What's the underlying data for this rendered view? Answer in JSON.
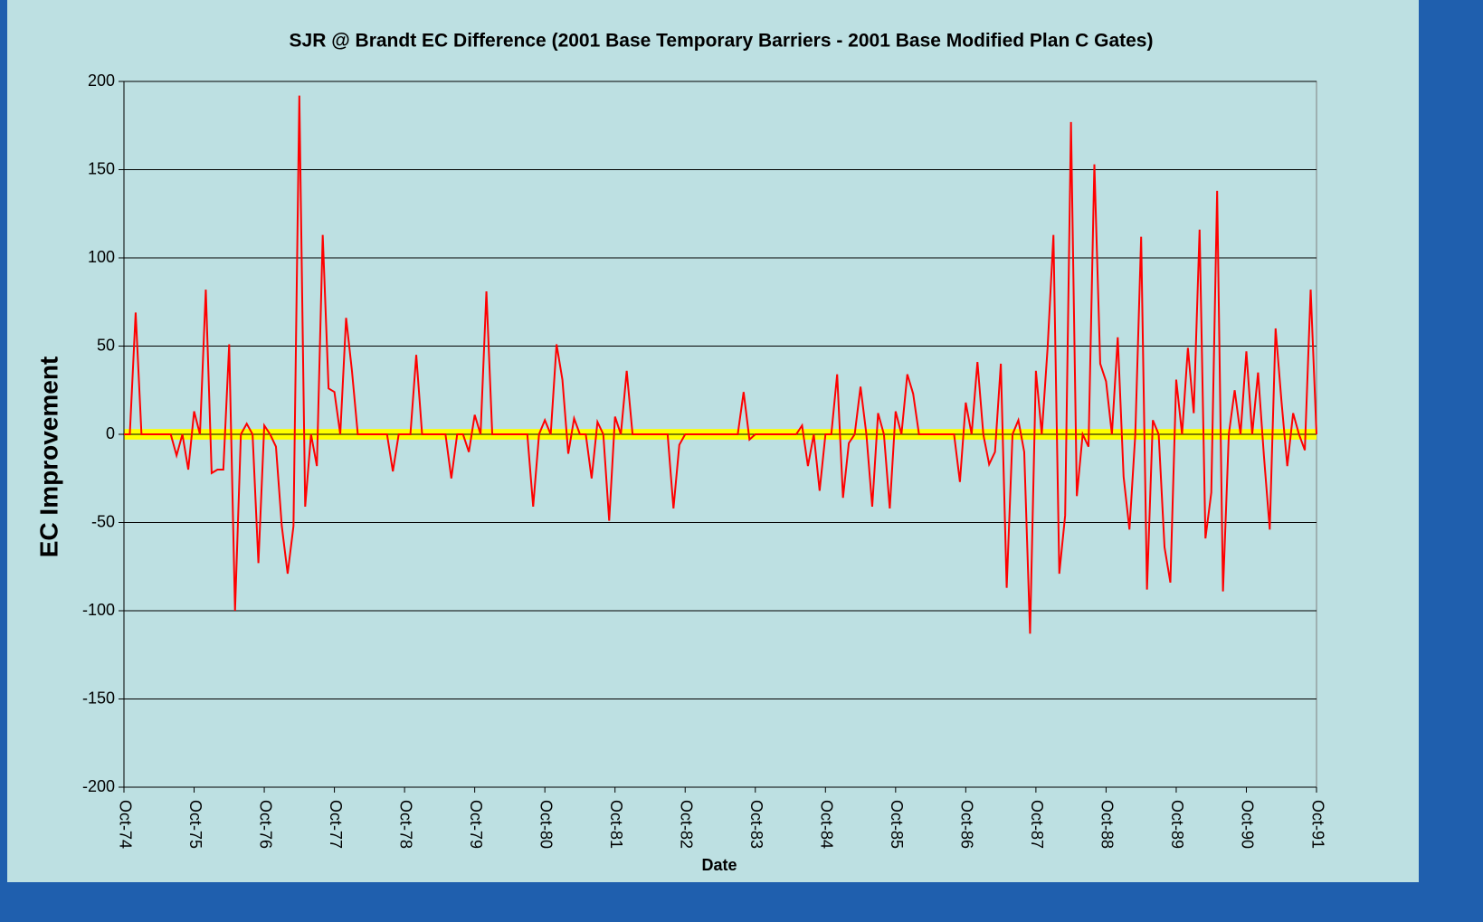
{
  "chart_data": {
    "type": "line",
    "title": "SJR @ Brandt EC Difference (2001 Base Temporary Barriers - 2001 Base Modified Plan C Gates)",
    "x_label": "Date",
    "y_label": "EC Improvement",
    "x": [
      "Oct-74",
      "Nov-74",
      "Dec-74",
      "Jan-75",
      "Feb-75",
      "Mar-75",
      "Apr-75",
      "May-75",
      "Jun-75",
      "Jul-75",
      "Aug-75",
      "Sep-75",
      "Oct-75",
      "Nov-75",
      "Dec-75",
      "Jan-76",
      "Feb-76",
      "Mar-76",
      "Apr-76",
      "May-76",
      "Jun-76",
      "Jul-76",
      "Aug-76",
      "Sep-76",
      "Oct-76",
      "Nov-76",
      "Dec-76",
      "Jan-77",
      "Feb-77",
      "Mar-77",
      "Apr-77",
      "May-77",
      "Jun-77",
      "Jul-77",
      "Aug-77",
      "Sep-77",
      "Oct-77",
      "Nov-77",
      "Dec-77",
      "Jan-78",
      "Feb-78",
      "Mar-78",
      "Apr-78",
      "May-78",
      "Jun-78",
      "Jul-78",
      "Aug-78",
      "Sep-78",
      "Oct-78",
      "Nov-78",
      "Dec-78",
      "Jan-79",
      "Feb-79",
      "Mar-79",
      "Apr-79",
      "May-79",
      "Jun-79",
      "Jul-79",
      "Aug-79",
      "Sep-79",
      "Oct-79",
      "Nov-79",
      "Dec-79",
      "Jan-80",
      "Feb-80",
      "Mar-80",
      "Apr-80",
      "May-80",
      "Jun-80",
      "Jul-80",
      "Aug-80",
      "Sep-80",
      "Oct-80",
      "Nov-80",
      "Dec-80",
      "Jan-81",
      "Feb-81",
      "Mar-81",
      "Apr-81",
      "May-81",
      "Jun-81",
      "Jul-81",
      "Aug-81",
      "Sep-81",
      "Oct-81",
      "Nov-81",
      "Dec-81",
      "Jan-82",
      "Feb-82",
      "Mar-82",
      "Apr-82",
      "May-82",
      "Jun-82",
      "Jul-82",
      "Aug-82",
      "Sep-82",
      "Oct-82",
      "Nov-82",
      "Dec-82",
      "Jan-83",
      "Feb-83",
      "Mar-83",
      "Apr-83",
      "May-83",
      "Jun-83",
      "Jul-83",
      "Aug-83",
      "Sep-83",
      "Oct-83",
      "Nov-83",
      "Dec-83",
      "Jan-84",
      "Feb-84",
      "Mar-84",
      "Apr-84",
      "May-84",
      "Jun-84",
      "Jul-84",
      "Aug-84",
      "Sep-84",
      "Oct-84",
      "Nov-84",
      "Dec-84",
      "Jan-85",
      "Feb-85",
      "Mar-85",
      "Apr-85",
      "May-85",
      "Jun-85",
      "Jul-85",
      "Aug-85",
      "Sep-85",
      "Oct-85",
      "Nov-85",
      "Dec-85",
      "Jan-86",
      "Feb-86",
      "Mar-86",
      "Apr-86",
      "May-86",
      "Jun-86",
      "Jul-86",
      "Aug-86",
      "Sep-86",
      "Oct-86",
      "Nov-86",
      "Dec-86",
      "Jan-87",
      "Feb-87",
      "Mar-87",
      "Apr-87",
      "May-87",
      "Jun-87",
      "Jul-87",
      "Aug-87",
      "Sep-87",
      "Oct-87",
      "Nov-87",
      "Dec-87",
      "Jan-88",
      "Feb-88",
      "Mar-88",
      "Apr-88",
      "May-88",
      "Jun-88",
      "Jul-88",
      "Aug-88",
      "Sep-88",
      "Oct-88",
      "Nov-88",
      "Dec-88",
      "Jan-89",
      "Feb-89",
      "Mar-89",
      "Apr-89",
      "May-89",
      "Jun-89",
      "Jul-89",
      "Aug-89",
      "Sep-89",
      "Oct-89",
      "Nov-89",
      "Dec-89",
      "Jan-90",
      "Feb-90",
      "Mar-90",
      "Apr-90",
      "May-90",
      "Jun-90",
      "Jul-90",
      "Aug-90",
      "Sep-90",
      "Oct-90",
      "Nov-90",
      "Dec-90",
      "Jan-91",
      "Feb-91",
      "Mar-91",
      "Apr-91",
      "May-91",
      "Jun-91",
      "Jul-91",
      "Aug-91",
      "Sep-91",
      "Oct-91"
    ],
    "tick_every": 12,
    "series": [
      {
        "name": "EC Difference",
        "color": "#ff0000",
        "values": [
          0,
          0,
          69,
          0,
          0,
          0,
          0,
          0,
          0,
          -12,
          0,
          -20,
          13,
          0,
          82,
          -22,
          -20,
          -20,
          51,
          -100,
          0,
          6,
          0,
          -73,
          5,
          0,
          -7,
          -52,
          -79,
          -52,
          192,
          -41,
          0,
          -18,
          113,
          26,
          24,
          0,
          66,
          36,
          0,
          0,
          0,
          0,
          0,
          0,
          -21,
          0,
          0,
          0,
          45,
          0,
          0,
          0,
          0,
          0,
          -25,
          0,
          0,
          -10,
          11,
          0,
          81,
          0,
          0,
          0,
          0,
          0,
          0,
          0,
          -41,
          0,
          8,
          0,
          51,
          31,
          -11,
          9,
          0,
          0,
          -25,
          7,
          0,
          -49,
          10,
          0,
          36,
          0,
          0,
          0,
          0,
          0,
          0,
          0,
          -42,
          -6,
          0,
          0,
          0,
          0,
          0,
          0,
          0,
          0,
          0,
          0,
          24,
          -3,
          0,
          0,
          0,
          0,
          0,
          0,
          0,
          0,
          5,
          -18,
          0,
          -32,
          0,
          0,
          34,
          -36,
          -5,
          0,
          27,
          0,
          -41,
          12,
          0,
          -42,
          13,
          0,
          34,
          23,
          0,
          0,
          0,
          0,
          0,
          0,
          0,
          -27,
          18,
          0,
          41,
          0,
          -17,
          -10,
          40,
          -87,
          0,
          8,
          -10,
          -113,
          36,
          0,
          49,
          113,
          -79,
          -46,
          177,
          -35,
          0,
          -7,
          153,
          40,
          30,
          0,
          55,
          -24,
          -54,
          0,
          112,
          -88,
          8,
          0,
          -64,
          -84,
          31,
          0,
          49,
          12,
          116,
          -59,
          -33,
          138,
          -89,
          0,
          25,
          0,
          47,
          0,
          35,
          -12,
          -54,
          60,
          19,
          -18,
          12,
          0,
          -9,
          82,
          0
        ]
      }
    ],
    "ylim": [
      -200,
      200
    ],
    "yticks": [
      -200,
      -150,
      -100,
      -50,
      0,
      50,
      100,
      150,
      200
    ],
    "grid": true,
    "highlight_band": {
      "range": [
        -3,
        3
      ],
      "color": "#ffff00"
    }
  }
}
